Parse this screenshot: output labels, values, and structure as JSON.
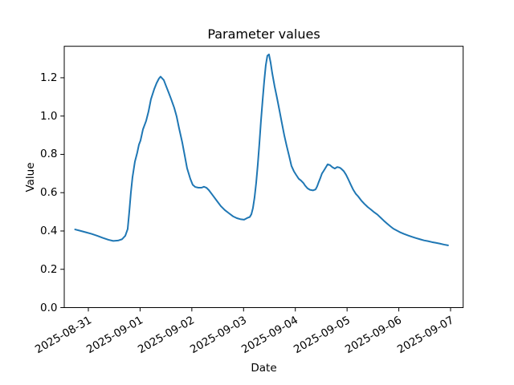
{
  "figure": {
    "background": "#ffffff",
    "title": "Parameter values",
    "xlabel": "Date",
    "ylabel": "Value"
  },
  "chart_data": {
    "type": "line",
    "title": "Parameter values",
    "xlabel": "Date",
    "ylabel": "Value",
    "grid": false,
    "legend": "none",
    "line_color": "#1f77b4",
    "x_tick_labels": [
      "2025-08-31",
      "2025-09-01",
      "2025-09-02",
      "2025-09-03",
      "2025-09-04",
      "2025-09-05",
      "2025-09-06",
      "2025-09-07"
    ],
    "x_tick_days": [
      0,
      1,
      2,
      3,
      4,
      5,
      6,
      7
    ],
    "y_tick_labels": [
      "0.0",
      "0.2",
      "0.4",
      "0.6",
      "0.8",
      "1.0",
      "1.2"
    ],
    "y_tick_values": [
      0,
      0.2,
      0.4,
      0.6,
      0.8,
      1.0,
      1.2
    ],
    "x_range_days": [
      -0.4655,
      7.2435
    ],
    "y_range": [
      0,
      1.3643
    ],
    "series": [
      {
        "color": "#1f77b4",
        "points": [
          [
            -0.256,
            0.408
          ],
          [
            -0.155,
            0.401
          ],
          [
            -0.047,
            0.393
          ],
          [
            0.062,
            0.385
          ],
          [
            0.171,
            0.375
          ],
          [
            0.279,
            0.364
          ],
          [
            0.388,
            0.354
          ],
          [
            0.481,
            0.348
          ],
          [
            0.574,
            0.35
          ],
          [
            0.652,
            0.357
          ],
          [
            0.714,
            0.375
          ],
          [
            0.76,
            0.41
          ],
          [
            0.791,
            0.5
          ],
          [
            0.822,
            0.6
          ],
          [
            0.853,
            0.68
          ],
          [
            0.9,
            0.762
          ],
          [
            0.946,
            0.81
          ],
          [
            0.977,
            0.85
          ],
          [
            1.008,
            0.872
          ],
          [
            1.055,
            0.93
          ],
          [
            1.117,
            0.975
          ],
          [
            1.164,
            1.025
          ],
          [
            1.21,
            1.088
          ],
          [
            1.272,
            1.14
          ],
          [
            1.319,
            1.172
          ],
          [
            1.365,
            1.196
          ],
          [
            1.396,
            1.206
          ],
          [
            1.427,
            1.197
          ],
          [
            1.458,
            1.188
          ],
          [
            1.505,
            1.155
          ],
          [
            1.552,
            1.123
          ],
          [
            1.598,
            1.09
          ],
          [
            1.66,
            1.043
          ],
          [
            1.707,
            0.997
          ],
          [
            1.753,
            0.937
          ],
          [
            1.815,
            0.862
          ],
          [
            1.862,
            0.795
          ],
          [
            1.908,
            0.728
          ],
          [
            1.971,
            0.672
          ],
          [
            2.017,
            0.641
          ],
          [
            2.064,
            0.63
          ],
          [
            2.126,
            0.626
          ],
          [
            2.188,
            0.626
          ],
          [
            2.234,
            0.631
          ],
          [
            2.281,
            0.626
          ],
          [
            2.327,
            0.614
          ],
          [
            2.405,
            0.586
          ],
          [
            2.482,
            0.558
          ],
          [
            2.56,
            0.53
          ],
          [
            2.638,
            0.509
          ],
          [
            2.715,
            0.493
          ],
          [
            2.793,
            0.477
          ],
          [
            2.87,
            0.467
          ],
          [
            2.948,
            0.461
          ],
          [
            3.01,
            0.459
          ],
          [
            3.072,
            0.468
          ],
          [
            3.119,
            0.473
          ],
          [
            3.15,
            0.487
          ],
          [
            3.181,
            0.52
          ],
          [
            3.212,
            0.575
          ],
          [
            3.243,
            0.65
          ],
          [
            3.274,
            0.745
          ],
          [
            3.305,
            0.855
          ],
          [
            3.336,
            0.975
          ],
          [
            3.367,
            1.08
          ],
          [
            3.398,
            1.18
          ],
          [
            3.429,
            1.265
          ],
          [
            3.46,
            1.315
          ],
          [
            3.491,
            1.322
          ],
          [
            3.522,
            1.28
          ],
          [
            3.553,
            1.225
          ],
          [
            3.6,
            1.155
          ],
          [
            3.646,
            1.095
          ],
          [
            3.693,
            1.03
          ],
          [
            3.739,
            0.965
          ],
          [
            3.786,
            0.9
          ],
          [
            3.832,
            0.845
          ],
          [
            3.879,
            0.793
          ],
          [
            3.925,
            0.74
          ],
          [
            3.972,
            0.712
          ],
          [
            4.018,
            0.692
          ],
          [
            4.065,
            0.673
          ],
          [
            4.111,
            0.663
          ],
          [
            4.158,
            0.65
          ],
          [
            4.189,
            0.637
          ],
          [
            4.235,
            0.623
          ],
          [
            4.282,
            0.615
          ],
          [
            4.344,
            0.612
          ],
          [
            4.391,
            0.617
          ],
          [
            4.422,
            0.633
          ],
          [
            4.453,
            0.656
          ],
          [
            4.484,
            0.677
          ],
          [
            4.515,
            0.7
          ],
          [
            4.546,
            0.713
          ],
          [
            4.593,
            0.734
          ],
          [
            4.624,
            0.748
          ],
          [
            4.67,
            0.744
          ],
          [
            4.717,
            0.733
          ],
          [
            4.763,
            0.726
          ],
          [
            4.81,
            0.734
          ],
          [
            4.856,
            0.731
          ],
          [
            4.887,
            0.725
          ],
          [
            4.934,
            0.713
          ],
          [
            4.98,
            0.694
          ],
          [
            5.027,
            0.668
          ],
          [
            5.073,
            0.641
          ],
          [
            5.12,
            0.615
          ],
          [
            5.166,
            0.595
          ],
          [
            5.213,
            0.581
          ],
          [
            5.275,
            0.559
          ],
          [
            5.337,
            0.541
          ],
          [
            5.399,
            0.525
          ],
          [
            5.461,
            0.512
          ],
          [
            5.523,
            0.498
          ],
          [
            5.585,
            0.486
          ],
          [
            5.647,
            0.47
          ],
          [
            5.709,
            0.454
          ],
          [
            5.771,
            0.439
          ],
          [
            5.833,
            0.425
          ],
          [
            5.895,
            0.412
          ],
          [
            5.957,
            0.403
          ],
          [
            6.019,
            0.394
          ],
          [
            6.097,
            0.385
          ],
          [
            6.174,
            0.377
          ],
          [
            6.252,
            0.37
          ],
          [
            6.33,
            0.363
          ],
          [
            6.407,
            0.357
          ],
          [
            6.485,
            0.351
          ],
          [
            6.563,
            0.347
          ],
          [
            6.64,
            0.342
          ],
          [
            6.718,
            0.338
          ],
          [
            6.795,
            0.334
          ],
          [
            6.873,
            0.329
          ],
          [
            6.951,
            0.325
          ]
        ]
      }
    ]
  }
}
